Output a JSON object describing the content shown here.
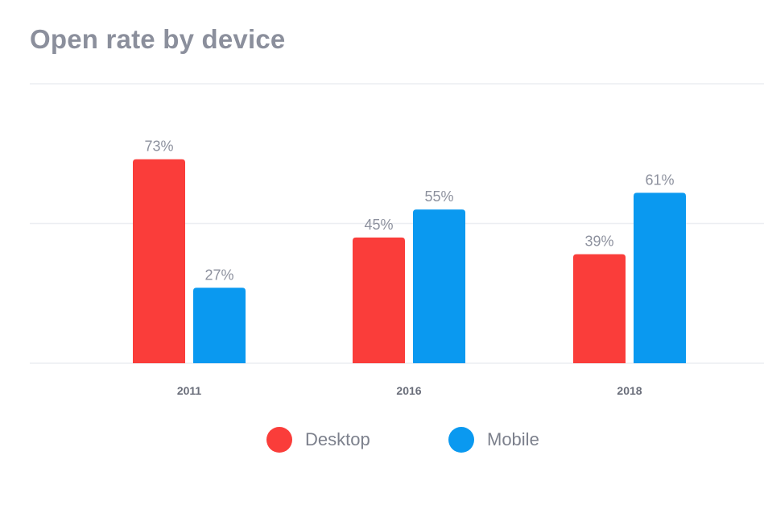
{
  "chart_data": {
    "type": "bar",
    "title": "Open rate by device",
    "categories": [
      "2011",
      "2016",
      "2018"
    ],
    "series": [
      {
        "name": "Desktop",
        "color": "#fa3d3a",
        "values": [
          73,
          45,
          39
        ],
        "labels": [
          "73%",
          "45%",
          "39%"
        ]
      },
      {
        "name": "Mobile",
        "color": "#0a99f0",
        "values": [
          27,
          55,
          61
        ],
        "labels": [
          "27%",
          "55%",
          "61%"
        ]
      }
    ],
    "ylim": [
      0,
      100
    ],
    "grid": true,
    "legend": "bottom-center",
    "xlabel": "",
    "ylabel": ""
  }
}
